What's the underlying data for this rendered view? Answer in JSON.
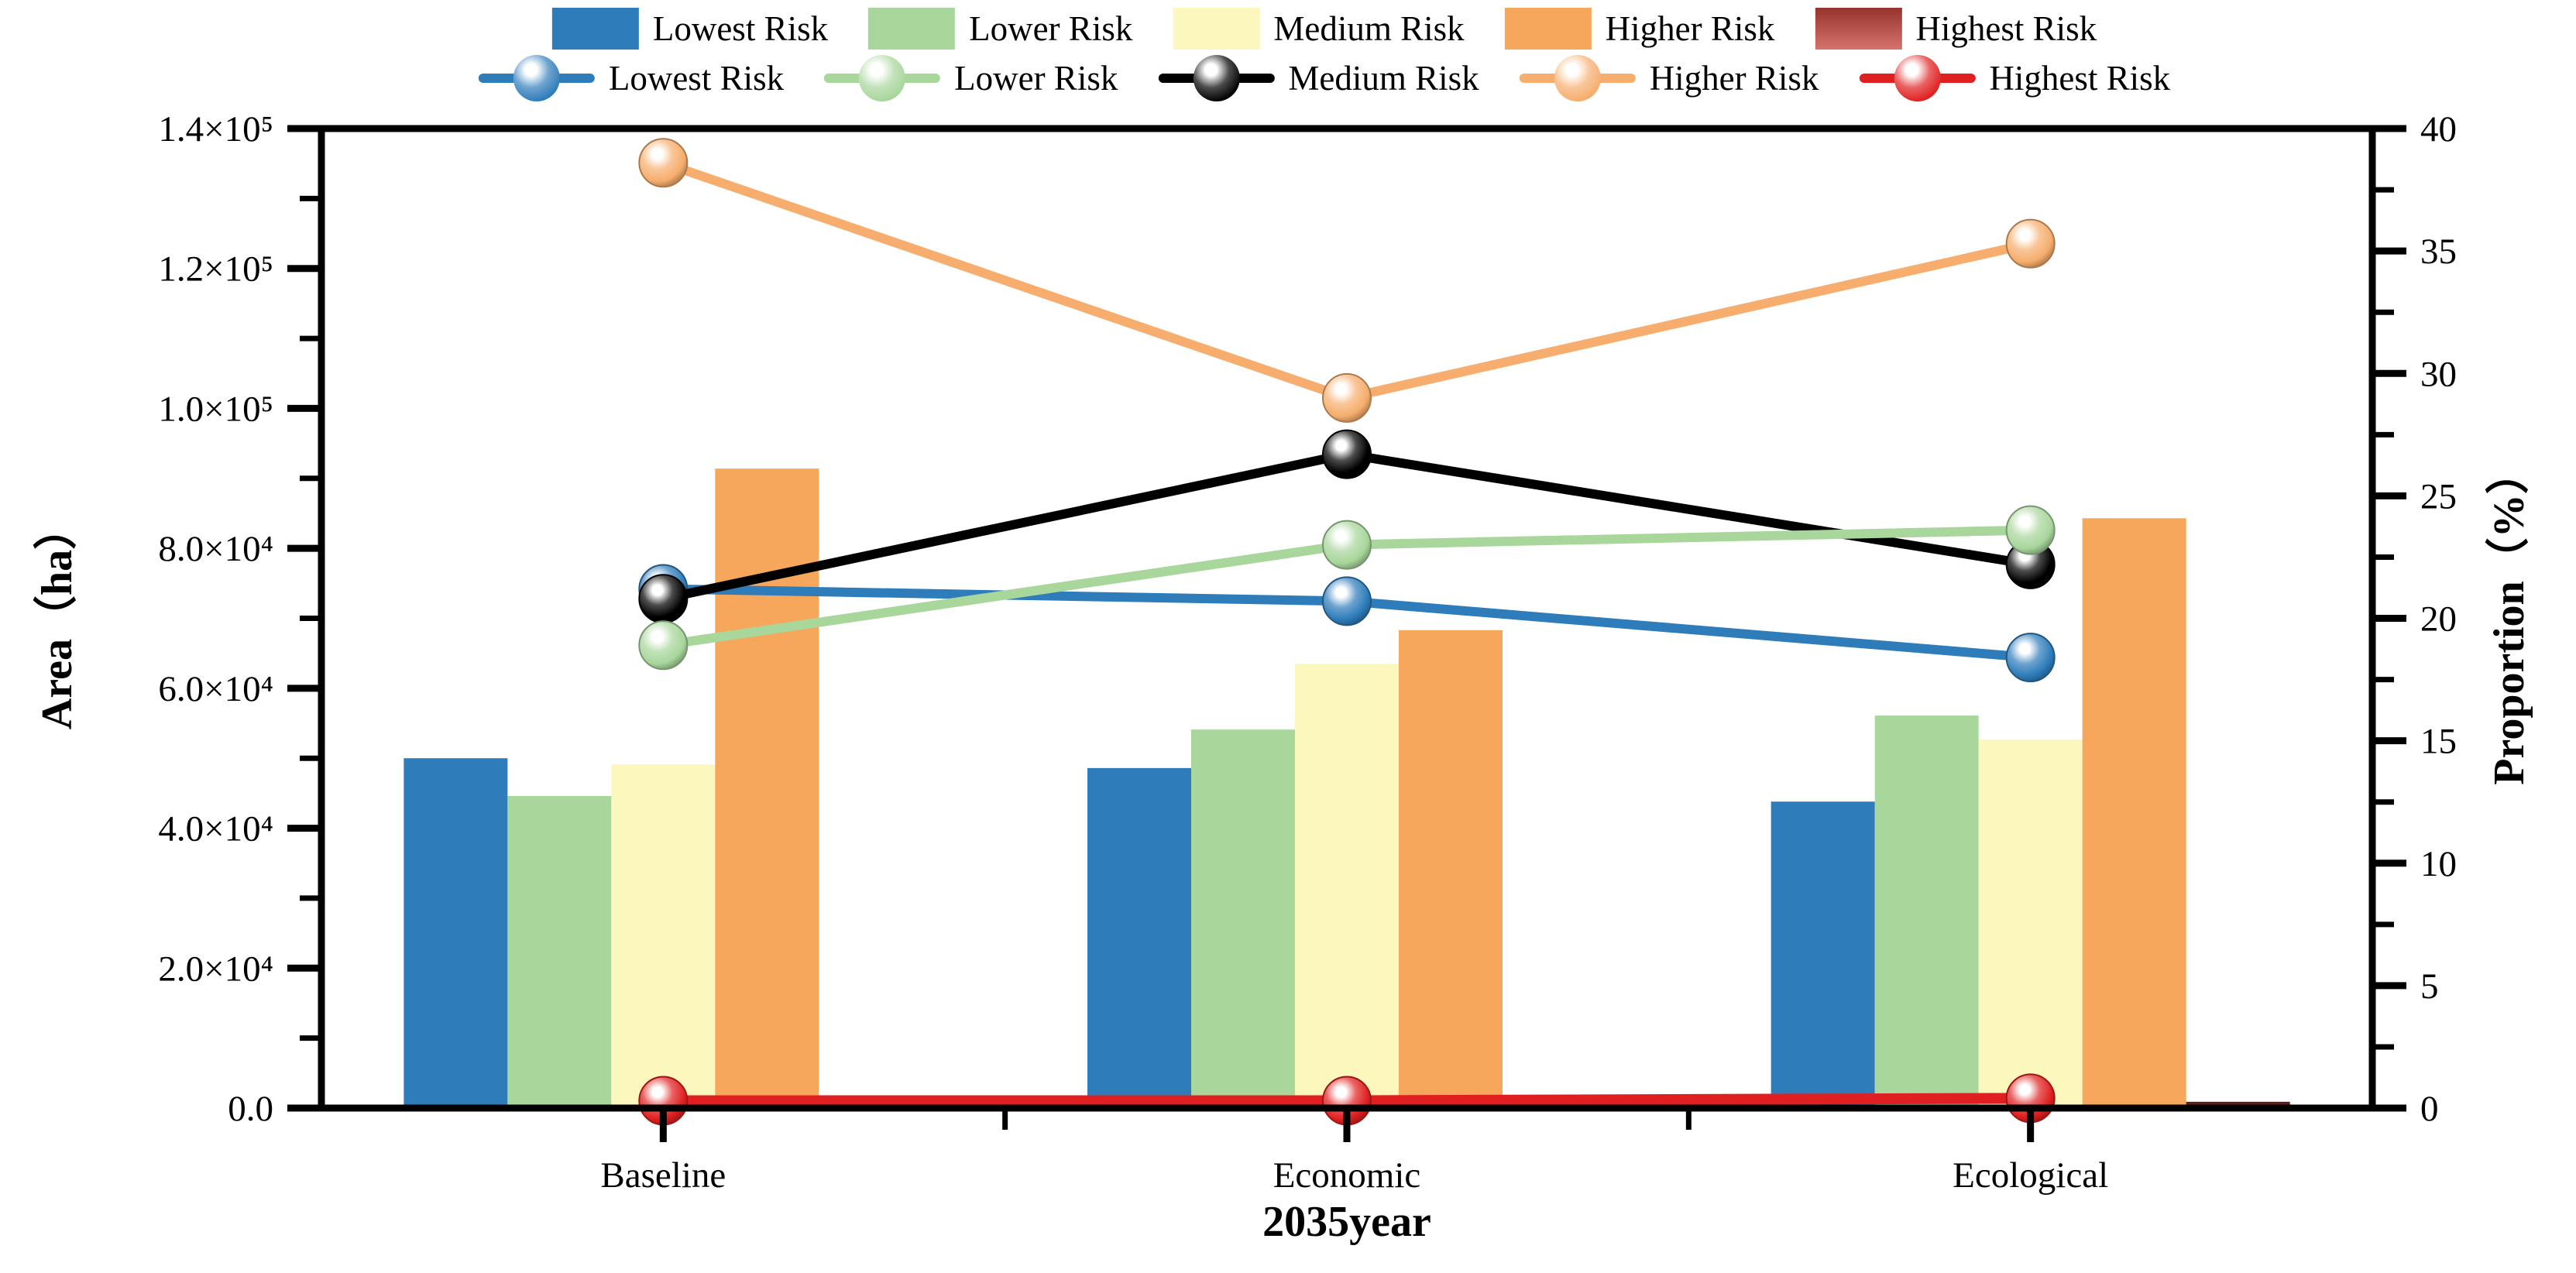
{
  "legend": {
    "bar_items": [
      {
        "label": "Lowest Risk",
        "color": "#2e7cba"
      },
      {
        "label": "Lower Risk",
        "color": "#a8d69b"
      },
      {
        "label": "Medium Risk",
        "color": "#fbf7bd"
      },
      {
        "label": "Higher Risk",
        "color": "#f7a75c"
      },
      {
        "label": "Highest Risk",
        "color": "#c8443c"
      }
    ],
    "line_items": [
      {
        "label": "Lowest Risk",
        "color": "#2e7cba"
      },
      {
        "label": "Lower Risk",
        "color": "#a8d69b"
      },
      {
        "label": "Medium Risk",
        "color": "#000000"
      },
      {
        "label": "Higher Risk",
        "color": "#f6ad6d"
      },
      {
        "label": "Highest Risk",
        "color": "#e02020"
      }
    ]
  },
  "chart_data": {
    "type": "bar+line",
    "categories": [
      "Baseline",
      "Economic",
      "Ecological"
    ],
    "xlabel": "2035year",
    "ylabel_left": "Area（ha）",
    "ylabel_right": "Proportion（%）",
    "y_left_axis": {
      "min": 0,
      "max": 140000,
      "minor_step": 10000,
      "tick_values": [
        0,
        20000,
        40000,
        60000,
        80000,
        100000,
        120000,
        140000
      ],
      "tick_labels": [
        "0.0",
        "2.0×10⁴",
        "4.0×10⁴",
        "6.0×10⁴",
        "8.0×10⁴",
        "1.0×10⁵",
        "1.2×10⁵",
        "1.4×10⁵"
      ]
    },
    "y_right_axis": {
      "min": 0,
      "max": 40,
      "minor_step": 2.5,
      "tick_values": [
        0,
        5,
        10,
        15,
        20,
        25,
        30,
        35,
        40
      ],
      "tick_labels": [
        "0",
        "5",
        "10",
        "15",
        "20",
        "25",
        "30",
        "35",
        "40"
      ]
    },
    "bar_series": [
      {
        "name": "Lowest Risk",
        "color": "#2e7cba",
        "values": [
          50000,
          48600,
          43800
        ]
      },
      {
        "name": "Lower Risk",
        "color": "#a8d69b",
        "values": [
          44600,
          54100,
          56100
        ]
      },
      {
        "name": "Medium Risk",
        "color": "#fbf7bd",
        "values": [
          49100,
          63500,
          52700
        ]
      },
      {
        "name": "Higher Risk",
        "color": "#f7a75c",
        "values": [
          91400,
          68300,
          84300
        ]
      },
      {
        "name": "Highest Risk",
        "color": "#5e1d1a",
        "values": [
          700,
          700,
          900
        ]
      }
    ],
    "line_series": [
      {
        "name": "Lowest Risk",
        "color": "#2e7cba",
        "values": [
          21.2,
          20.7,
          18.4
        ]
      },
      {
        "name": "Lower Risk",
        "color": "#a8d69b",
        "values": [
          18.9,
          23.0,
          23.6
        ]
      },
      {
        "name": "Medium Risk",
        "color": "#000000",
        "values": [
          20.8,
          26.7,
          22.2
        ]
      },
      {
        "name": "Higher Risk",
        "color": "#f6ad6d",
        "values": [
          38.6,
          29.0,
          35.3
        ]
      },
      {
        "name": "Highest Risk",
        "color": "#e02020",
        "values": [
          0.3,
          0.3,
          0.4
        ]
      }
    ],
    "legend_position": "top-center",
    "grid": false
  }
}
